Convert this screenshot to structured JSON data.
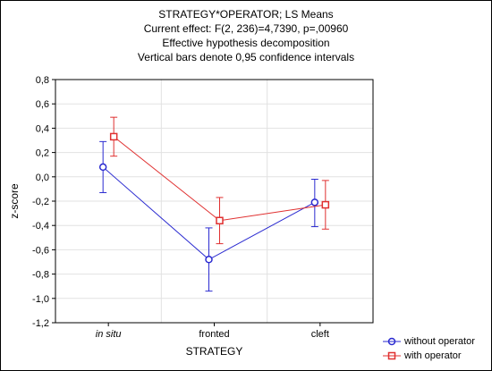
{
  "chart_data": {
    "type": "line",
    "title": "STRATEGY*OPERATOR; LS Means",
    "subtitle_lines": [
      "Current effect: F(2, 236)=4,7390, p=,00960",
      "Effective hypothesis decomposition",
      "Vertical bars denote 0,95 confidence intervals"
    ],
    "xlabel": "STRATEGY",
    "ylabel": "z-score",
    "categories": [
      "in situ",
      "fronted",
      "cleft"
    ],
    "ylim": [
      -1.2,
      0.8
    ],
    "yticks": [
      "0,8",
      "0,6",
      "0,4",
      "0,2",
      "0,0",
      "-0,2",
      "-0,4",
      "-0,6",
      "-0,8",
      "-1,0",
      "-1,2"
    ],
    "ytick_values": [
      0.8,
      0.6,
      0.4,
      0.2,
      0.0,
      -0.2,
      -0.4,
      -0.6,
      -0.8,
      -1.0,
      -1.2
    ],
    "grid": true,
    "legend_position": "bottom-right",
    "series": [
      {
        "name": "without operator",
        "color": "#2a2ad0",
        "marker": "circle",
        "values": [
          0.08,
          -0.68,
          -0.21
        ],
        "ci_low": [
          -0.13,
          -0.94,
          -0.41
        ],
        "ci_high": [
          0.29,
          -0.42,
          -0.02
        ]
      },
      {
        "name": "with operator",
        "color": "#e03030",
        "marker": "square",
        "values": [
          0.33,
          -0.36,
          -0.23
        ],
        "ci_low": [
          0.17,
          -0.55,
          -0.43
        ],
        "ci_high": [
          0.49,
          -0.17,
          -0.03
        ]
      }
    ]
  }
}
